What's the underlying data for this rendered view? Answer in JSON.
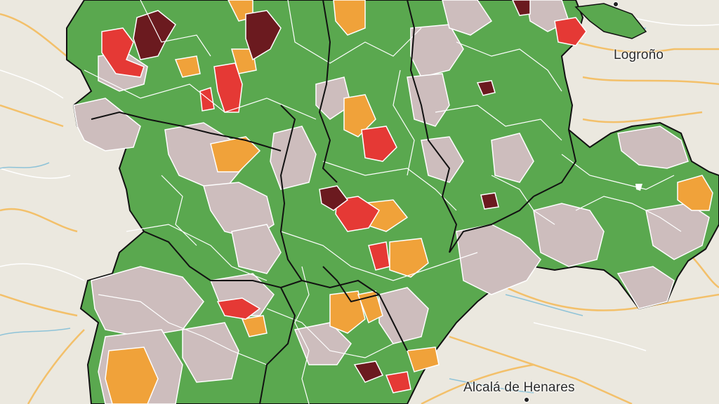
{
  "map": {
    "cities": [
      {
        "id": "logrono",
        "label": "Logroño"
      },
      {
        "id": "alcala",
        "label": "Alcalá de Henares"
      }
    ],
    "category_colors": {
      "low": "#5aa84f",
      "neutral": "#cdbdbd",
      "medium": "#f0a23a",
      "high": "#e53935",
      "very_high": "#6b1a1f"
    },
    "basemap_colors": {
      "land": "#ebe8df",
      "water": "#aad3df",
      "road_major": "#f5c26b",
      "road_minor": "#ffffff",
      "region_border": "#111111"
    }
  }
}
